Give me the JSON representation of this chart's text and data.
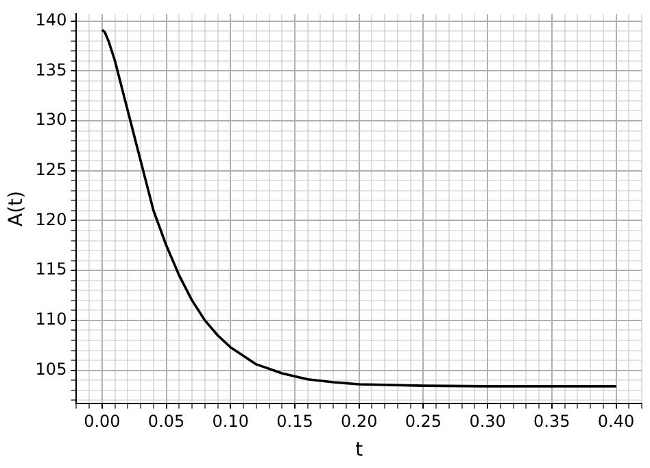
{
  "chart_data": {
    "type": "line",
    "xlabel": "t",
    "ylabel": "A(t)",
    "grid": true,
    "legend": false,
    "marker": "none",
    "line_style": "solid",
    "xlim": [
      -0.02,
      0.42
    ],
    "ylim": [
      101.7,
      140.7
    ],
    "xticks": [
      {
        "value": -0.02,
        "label": null
      },
      {
        "value": -0.01,
        "label": null
      },
      {
        "value": 0,
        "label": "0.00"
      },
      {
        "value": 0.01,
        "label": null
      },
      {
        "value": 0.02,
        "label": null
      },
      {
        "value": 0.03,
        "label": null
      },
      {
        "value": 0.04,
        "label": null
      },
      {
        "value": 0.05,
        "label": "0.05"
      },
      {
        "value": 0.06,
        "label": null
      },
      {
        "value": 0.07,
        "label": null
      },
      {
        "value": 0.08,
        "label": null
      },
      {
        "value": 0.09,
        "label": null
      },
      {
        "value": 0.1,
        "label": "0.10"
      },
      {
        "value": 0.11,
        "label": null
      },
      {
        "value": 0.12,
        "label": null
      },
      {
        "value": 0.13,
        "label": null
      },
      {
        "value": 0.14,
        "label": null
      },
      {
        "value": 0.15,
        "label": "0.15"
      },
      {
        "value": 0.16,
        "label": null
      },
      {
        "value": 0.17,
        "label": null
      },
      {
        "value": 0.18,
        "label": null
      },
      {
        "value": 0.19,
        "label": null
      },
      {
        "value": 0.2,
        "label": "0.20"
      },
      {
        "value": 0.21,
        "label": null
      },
      {
        "value": 0.22,
        "label": null
      },
      {
        "value": 0.23,
        "label": null
      },
      {
        "value": 0.24,
        "label": null
      },
      {
        "value": 0.25,
        "label": "0.25"
      },
      {
        "value": 0.26,
        "label": null
      },
      {
        "value": 0.27,
        "label": null
      },
      {
        "value": 0.28,
        "label": null
      },
      {
        "value": 0.29,
        "label": null
      },
      {
        "value": 0.3,
        "label": "0.30"
      },
      {
        "value": 0.31,
        "label": null
      },
      {
        "value": 0.32,
        "label": null
      },
      {
        "value": 0.33,
        "label": null
      },
      {
        "value": 0.34,
        "label": null
      },
      {
        "value": 0.35,
        "label": "0.35"
      },
      {
        "value": 0.36,
        "label": null
      },
      {
        "value": 0.37,
        "label": null
      },
      {
        "value": 0.38,
        "label": null
      },
      {
        "value": 0.39,
        "label": null
      },
      {
        "value": 0.4,
        "label": "0.40"
      },
      {
        "value": 0.41,
        "label": null
      },
      {
        "value": 0.42,
        "label": null
      }
    ],
    "yticks": [
      {
        "value": 102,
        "label": null
      },
      {
        "value": 103,
        "label": null
      },
      {
        "value": 104,
        "label": null
      },
      105,
      {
        "value": 106,
        "label": null
      },
      {
        "value": 107,
        "label": null
      },
      {
        "value": 108,
        "label": null
      },
      {
        "value": 109,
        "label": null
      },
      110,
      {
        "value": 111,
        "label": null
      },
      {
        "value": 112,
        "label": null
      },
      {
        "value": 113,
        "label": null
      },
      {
        "value": 114,
        "label": null
      },
      115,
      {
        "value": 116,
        "label": null
      },
      {
        "value": 117,
        "label": null
      },
      {
        "value": 118,
        "label": null
      },
      {
        "value": 119,
        "label": null
      },
      120,
      {
        "value": 121,
        "label": null
      },
      {
        "value": 122,
        "label": null
      },
      {
        "value": 123,
        "label": null
      },
      {
        "value": 124,
        "label": null
      },
      125,
      {
        "value": 126,
        "label": null
      },
      {
        "value": 127,
        "label": null
      },
      {
        "value": 128,
        "label": null
      },
      {
        "value": 129,
        "label": null
      },
      130,
      {
        "value": 131,
        "label": null
      },
      {
        "value": 132,
        "label": null
      },
      {
        "value": 133,
        "label": null
      },
      {
        "value": 134,
        "label": null
      },
      135,
      {
        "value": 136,
        "label": null
      },
      {
        "value": 137,
        "label": null
      },
      {
        "value": 138,
        "label": null
      },
      {
        "value": 139,
        "label": null
      },
      140
    ],
    "x": [
      0,
      0.002,
      0.005,
      0.01,
      0.02,
      0.03,
      0.04,
      0.05,
      0.06,
      0.07,
      0.08,
      0.09,
      0.1,
      0.12,
      0.14,
      0.16,
      0.18,
      0.2,
      0.25,
      0.3,
      0.35,
      0.4
    ],
    "series": [
      {
        "color": "#000000",
        "values": [
          139.1,
          138.9,
          138,
          136,
          131,
          126,
          121,
          117.5,
          114.5,
          112,
          110,
          108.5,
          107.3,
          105.6,
          104.7,
          104.1,
          103.8,
          103.6,
          103.45,
          103.4,
          103.4,
          103.4
        ]
      }
    ]
  }
}
